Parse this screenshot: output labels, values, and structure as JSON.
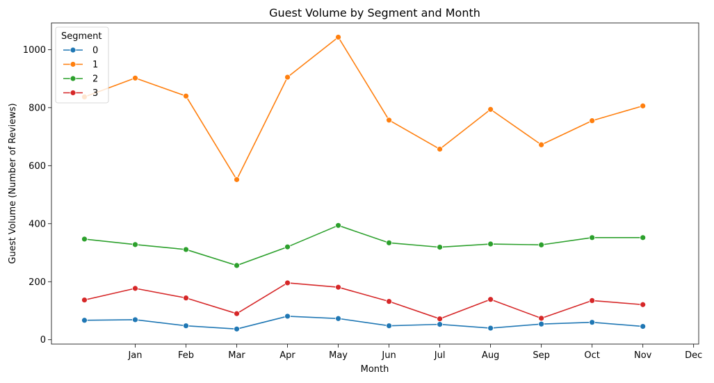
{
  "chart_data": {
    "type": "line",
    "title": "Guest Volume by Segment and Month",
    "xlabel": "Month",
    "ylabel": "Guest Volume (Number of Reviews)",
    "x": [
      1,
      2,
      3,
      4,
      5,
      6,
      7,
      8,
      9,
      10,
      11,
      12
    ],
    "xlim": [
      0.35,
      13.1
    ],
    "x_ticks": [
      {
        "x": 2,
        "label": "Jan"
      },
      {
        "x": 3,
        "label": "Feb"
      },
      {
        "x": 4,
        "label": "Mar"
      },
      {
        "x": 5,
        "label": "Apr"
      },
      {
        "x": 6,
        "label": "May"
      },
      {
        "x": 7,
        "label": "Jun"
      },
      {
        "x": 8,
        "label": "Jul"
      },
      {
        "x": 9,
        "label": "Aug"
      },
      {
        "x": 10,
        "label": "Sep"
      },
      {
        "x": 11,
        "label": "Oct"
      },
      {
        "x": 12,
        "label": "Nov"
      },
      {
        "x": 13,
        "label": "Dec"
      }
    ],
    "ylim": [
      -15,
      1092
    ],
    "y_ticks": [
      0,
      200,
      400,
      600,
      800,
      1000
    ],
    "grid": false,
    "legend": {
      "title": "Segment",
      "placement": "top-left"
    },
    "series": [
      {
        "name": "0",
        "color": "#1f77b4",
        "values": [
          67,
          69,
          48,
          37,
          81,
          73,
          48,
          53,
          40,
          54,
          60,
          46
        ]
      },
      {
        "name": "1",
        "color": "#ff7f0e",
        "values": [
          837,
          902,
          840,
          552,
          905,
          1043,
          757,
          657,
          794,
          672,
          755,
          806
        ]
      },
      {
        "name": "2",
        "color": "#2ca02c",
        "values": [
          347,
          328,
          311,
          256,
          320,
          394,
          334,
          319,
          330,
          327,
          352,
          352
        ]
      },
      {
        "name": "3",
        "color": "#d62728",
        "values": [
          137,
          177,
          144,
          90,
          196,
          181,
          132,
          72,
          139,
          74,
          135,
          121
        ]
      }
    ]
  }
}
